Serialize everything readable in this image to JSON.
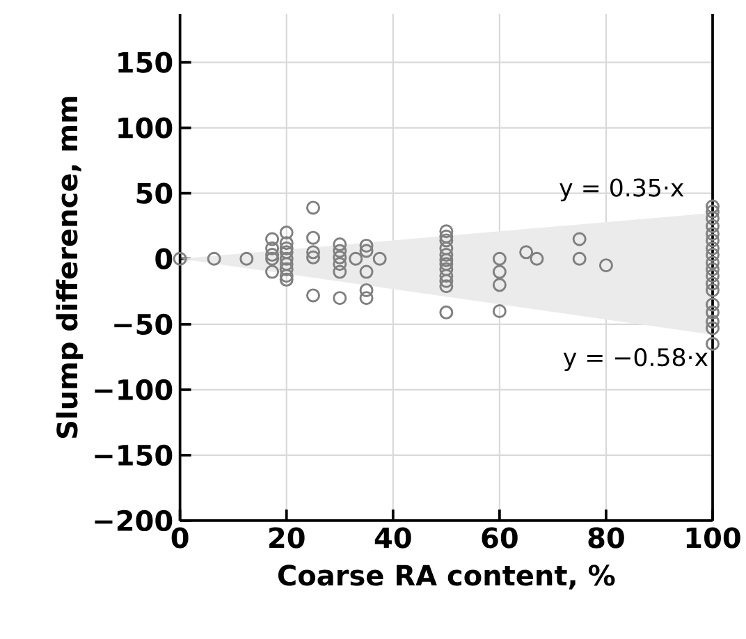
{
  "chart_data": {
    "type": "scatter",
    "xlabel": "Coarse RA content, %",
    "ylabel": "Slump difference, mm",
    "xlim": [
      0,
      100
    ],
    "ylim": [
      -200,
      187
    ],
    "xticks": [
      0,
      20,
      40,
      60,
      80,
      100
    ],
    "yticks": [
      {
        "value": -200,
        "label": "−200"
      },
      {
        "value": -150,
        "label": "−150"
      },
      {
        "value": -100,
        "label": "−100"
      },
      {
        "value": -50,
        "label": "−50"
      },
      0,
      50,
      100,
      150
    ],
    "grid": true,
    "marker": "circle",
    "annotations": [
      {
        "text": "y = 0.35·x",
        "x": 100,
        "y": 35
      },
      {
        "text": "y = −0.58·x",
        "x": 100,
        "y": -58
      }
    ],
    "series": [
      {
        "type": "area",
        "color": "#ebebeb",
        "x": [
          0,
          100
        ],
        "values": [
          null,
          null
        ],
        "lower": [
          0,
          -58
        ],
        "upper": [
          0,
          35
        ]
      },
      {
        "color": "#808080",
        "x": [
          0,
          6.4,
          12.5,
          17.3,
          17.3,
          17.3,
          17.3,
          17.3,
          20,
          20,
          20,
          20,
          20,
          20,
          20,
          20,
          20,
          25,
          25,
          25,
          25,
          25,
          30,
          30,
          30,
          30,
          30,
          30,
          33,
          35,
          35,
          35,
          35,
          35,
          37.5,
          50,
          50,
          50,
          50,
          50,
          50,
          50,
          50,
          50,
          50,
          50,
          50,
          60,
          60,
          60,
          60,
          65,
          67,
          75,
          75,
          80,
          100,
          100,
          100,
          100,
          100,
          100,
          100,
          100,
          100,
          100,
          100,
          100,
          100,
          100,
          100,
          100,
          100,
          100
        ],
        "values": [
          0,
          0,
          0,
          15,
          8,
          3,
          0,
          -10,
          20,
          12,
          8,
          5,
          0,
          -4,
          -8,
          -13,
          -16,
          39,
          16,
          5,
          1,
          -28,
          11,
          6,
          1,
          -4,
          -10,
          -30,
          0,
          10,
          6,
          -10,
          -24,
          -30,
          0,
          21,
          17,
          14,
          8,
          3,
          -1,
          -4,
          -8,
          -13,
          -17,
          -21,
          -41,
          0,
          -10,
          -20,
          -40,
          5,
          0,
          15,
          0,
          -5,
          40,
          36,
          31,
          25,
          19,
          14,
          8,
          3,
          -3,
          -8,
          -13,
          -19,
          -24,
          -35,
          -41,
          -48,
          -53,
          -65
        ]
      }
    ]
  }
}
